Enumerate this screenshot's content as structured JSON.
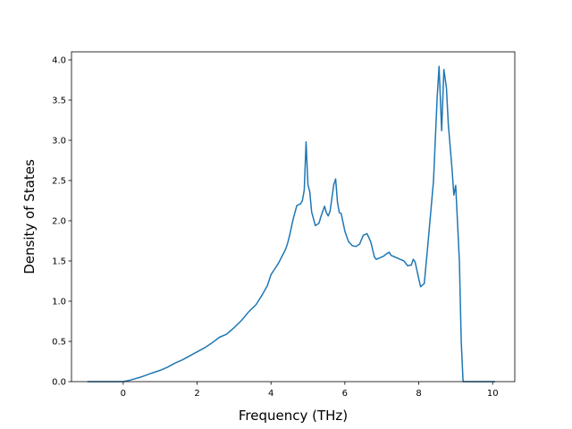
{
  "chart_data": {
    "type": "line",
    "title": "",
    "xlabel": "Frequency (THz)",
    "ylabel": "Density of States",
    "xlim": [
      -1.4,
      10.6
    ],
    "ylim": [
      0.0,
      4.1
    ],
    "xticks": [
      0,
      2,
      4,
      6,
      8,
      10
    ],
    "xtick_labels": [
      "0",
      "2",
      "4",
      "6",
      "8",
      "10"
    ],
    "yticks": [
      0.0,
      0.5,
      1.0,
      1.5,
      2.0,
      2.5,
      3.0,
      3.5,
      4.0
    ],
    "ytick_labels": [
      "0.0",
      "0.5",
      "1.0",
      "1.5",
      "2.0",
      "2.5",
      "3.0",
      "3.5",
      "4.0"
    ],
    "grid": false,
    "line_color": "#1f77b4",
    "series": [
      {
        "x": [
          -0.95,
          -0.5,
          0.0,
          0.2,
          0.5,
          0.8,
          1.0,
          1.2,
          1.4,
          1.6,
          1.8,
          2.0,
          2.2,
          2.4,
          2.6,
          2.8,
          3.0,
          3.2,
          3.4,
          3.6,
          3.75,
          3.9,
          4.0,
          4.1,
          4.2,
          4.3,
          4.4,
          4.45,
          4.5,
          4.6,
          4.7,
          4.8,
          4.85,
          4.9,
          4.95,
          5.0,
          5.05,
          5.1,
          5.2,
          5.3,
          5.35,
          5.45,
          5.5,
          5.55,
          5.6,
          5.7,
          5.75,
          5.8,
          5.85,
          5.9,
          6.0,
          6.1,
          6.2,
          6.3,
          6.4,
          6.5,
          6.6,
          6.7,
          6.8,
          6.85,
          6.95,
          7.05,
          7.1,
          7.2,
          7.25,
          7.35,
          7.5,
          7.6,
          7.7,
          7.8,
          7.85,
          7.9,
          8.0,
          8.05,
          8.15,
          8.25,
          8.4,
          8.5,
          8.55,
          8.62,
          8.68,
          8.75,
          8.8,
          8.9,
          8.95,
          9.0,
          9.1,
          9.15,
          9.2,
          9.5,
          10.05
        ],
        "y": [
          0.0,
          0.0,
          0.0,
          0.02,
          0.06,
          0.11,
          0.14,
          0.18,
          0.23,
          0.27,
          0.32,
          0.37,
          0.42,
          0.48,
          0.55,
          0.59,
          0.67,
          0.76,
          0.87,
          0.96,
          1.07,
          1.19,
          1.33,
          1.4,
          1.47,
          1.56,
          1.65,
          1.72,
          1.81,
          2.02,
          2.19,
          2.21,
          2.25,
          2.38,
          2.98,
          2.45,
          2.36,
          2.11,
          1.94,
          1.97,
          2.05,
          2.18,
          2.1,
          2.06,
          2.12,
          2.45,
          2.52,
          2.23,
          2.1,
          2.09,
          1.87,
          1.74,
          1.69,
          1.68,
          1.71,
          1.82,
          1.84,
          1.74,
          1.55,
          1.52,
          1.54,
          1.56,
          1.58,
          1.61,
          1.57,
          1.55,
          1.52,
          1.5,
          1.44,
          1.45,
          1.52,
          1.49,
          1.28,
          1.18,
          1.22,
          1.72,
          2.5,
          3.55,
          3.92,
          3.12,
          3.88,
          3.65,
          3.2,
          2.65,
          2.32,
          2.44,
          1.5,
          0.5,
          0.0,
          0.0,
          0.0
        ]
      }
    ]
  }
}
